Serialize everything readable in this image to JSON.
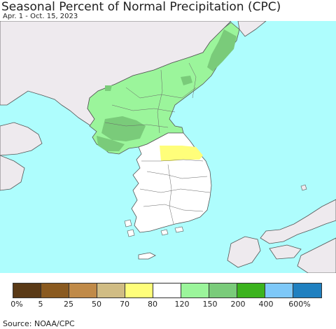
{
  "title": "Seasonal Percent of Normal Precipitation (CPC)",
  "subtitle": "Apr. 1 - Oct. 15, 2023",
  "source": "Source: NOAA/CPC",
  "colors": {
    "ocean": "#aefdfd",
    "land_other": "#eeeaee",
    "pct_80_120": "#ffffff",
    "pct_150_200": "#9bf59b",
    "pct_200_400": "#7acb7a",
    "pct_70_80": "#fffe7a",
    "border": "#555555"
  },
  "legend": {
    "colors": [
      "#5a3a16",
      "#8a5a20",
      "#c08a48",
      "#d0bc84",
      "#fffe7a",
      "#ffffff",
      "#9bf59b",
      "#7acb7a",
      "#3cb31e",
      "#7ec8f8",
      "#2080c0"
    ],
    "labels": [
      "0%",
      "5",
      "25",
      "50",
      "70",
      "80",
      "120",
      "150",
      "200",
      "400",
      "600%"
    ]
  }
}
